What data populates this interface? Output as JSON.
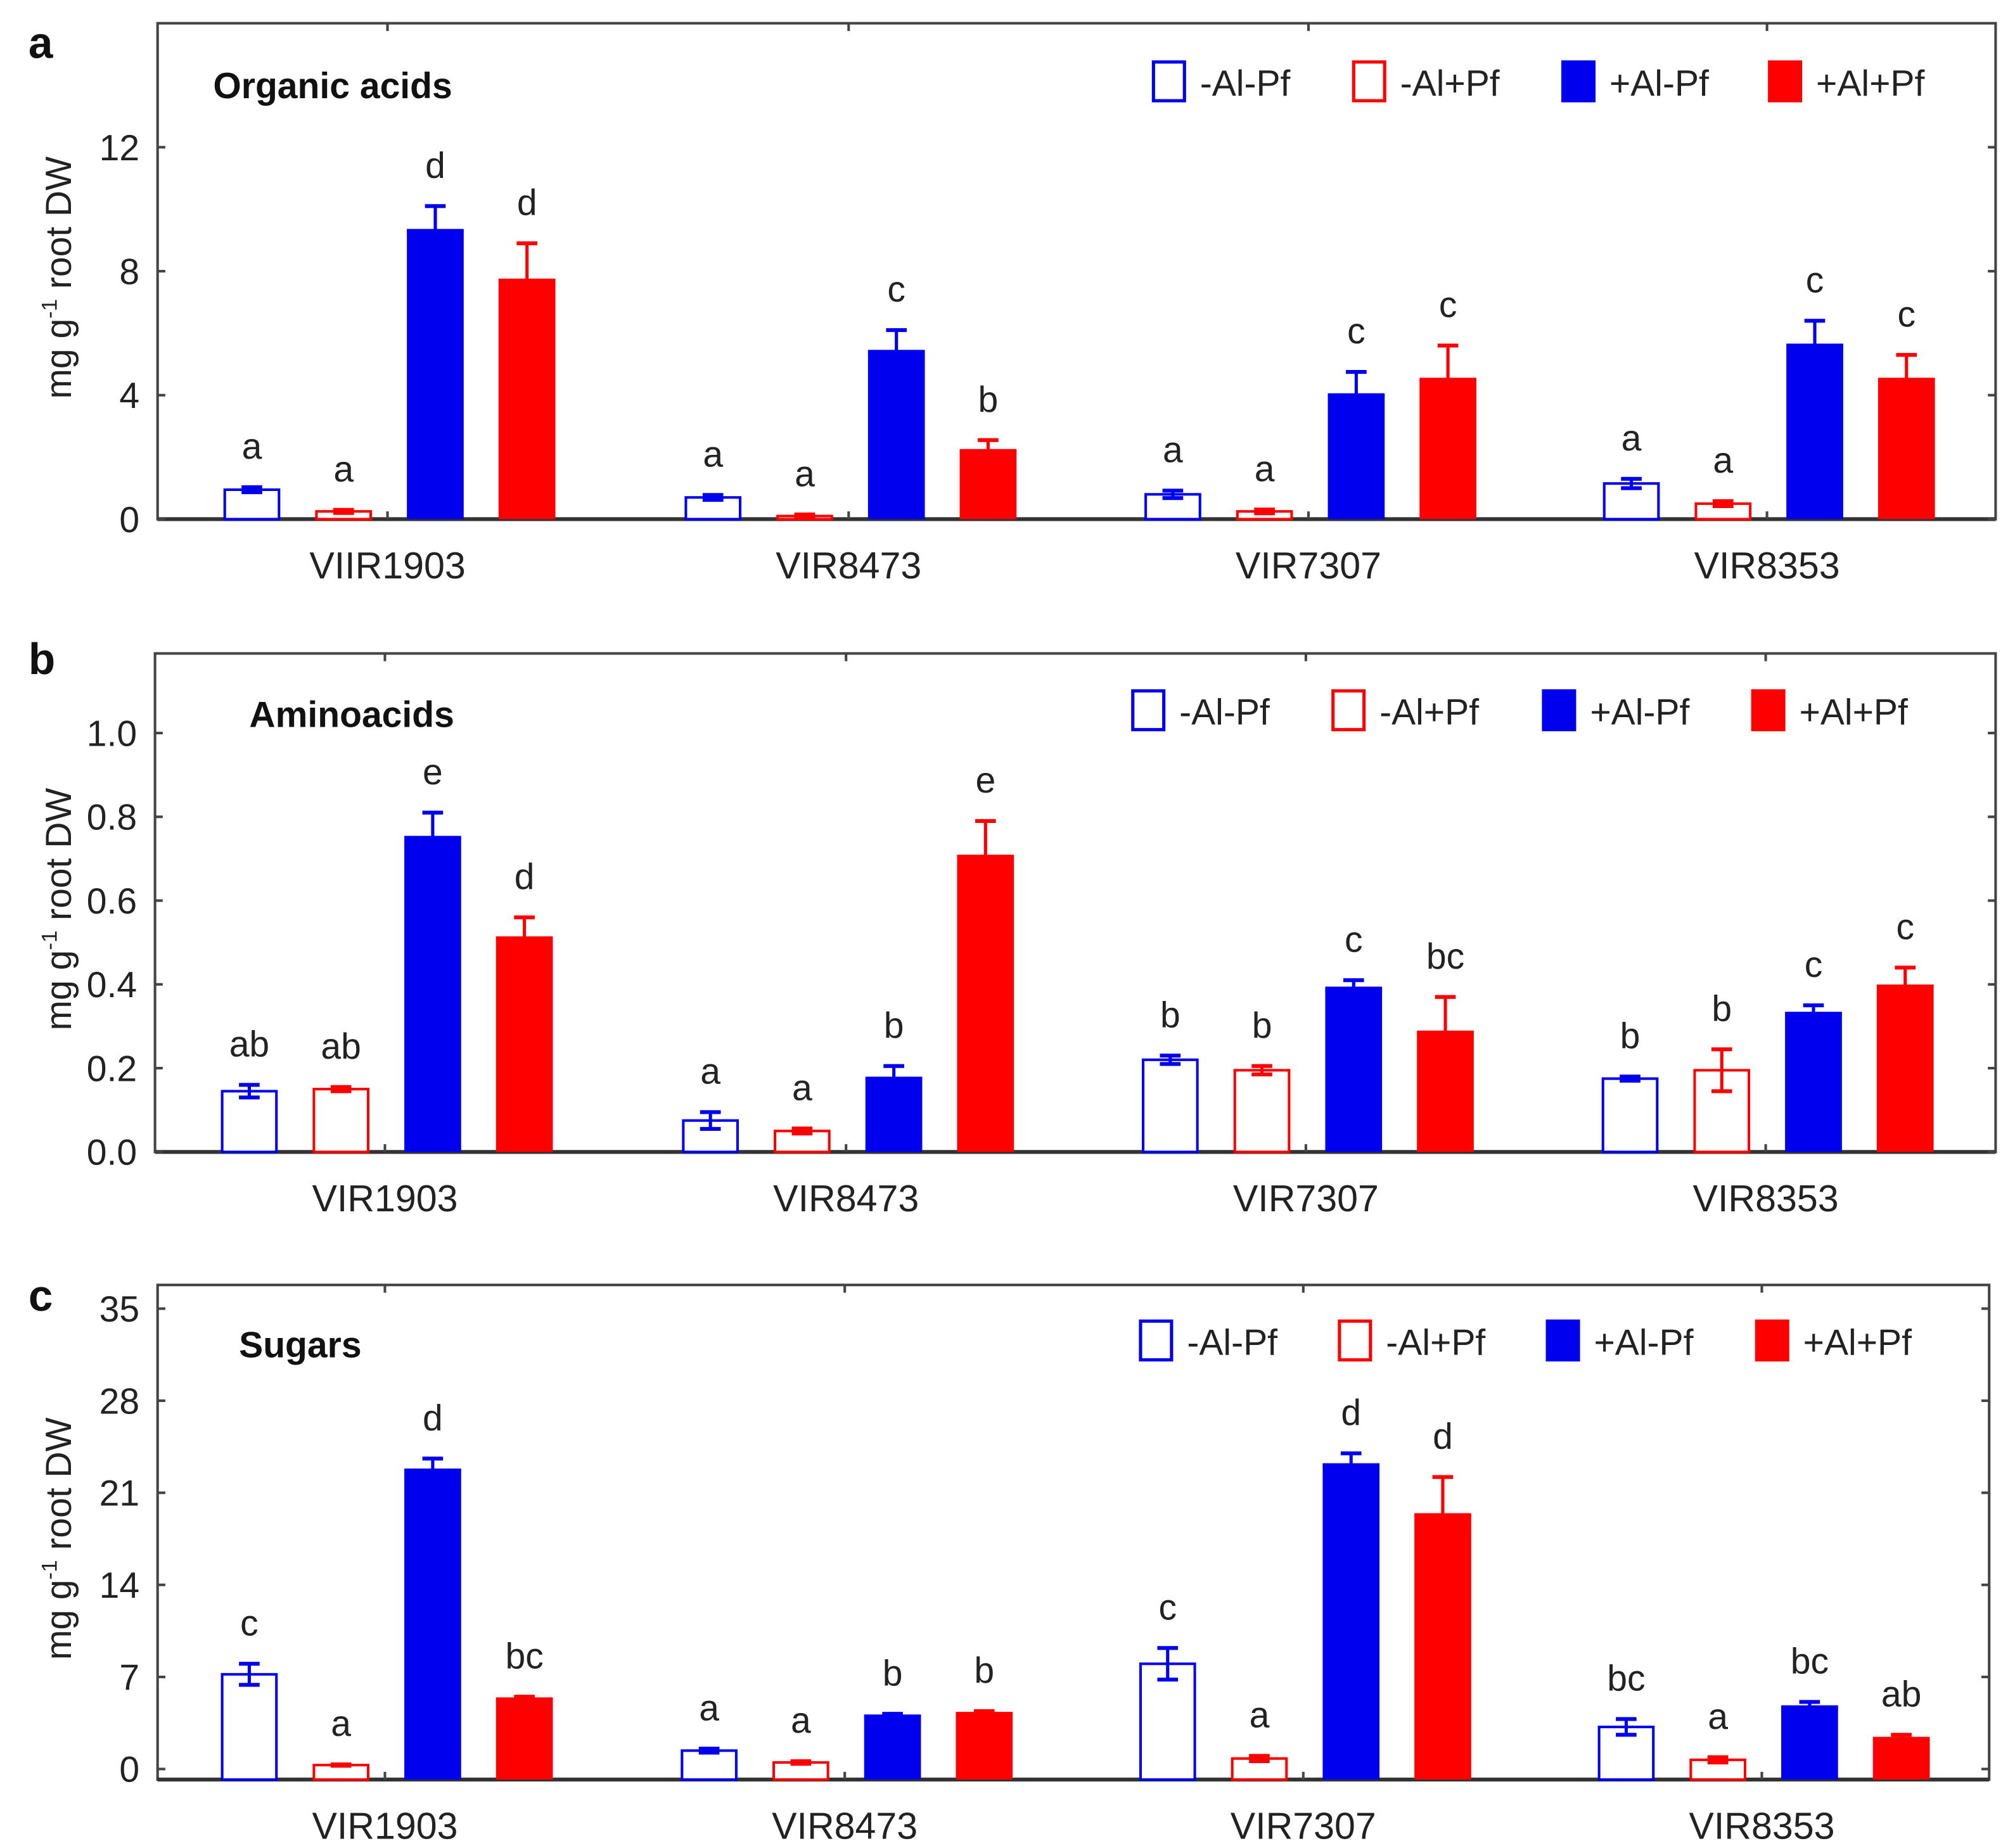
{
  "colors": {
    "blue": "#0000ee",
    "red": "#ff0000",
    "axis": "#444444"
  },
  "chart_data": [
    {
      "type": "bar",
      "panel_label": "a",
      "title": "Organic acids",
      "ylabel": "mg g-1 root DW",
      "ylabel_parts": {
        "main": "mg g",
        "sup": "-1",
        "rest": " root DW"
      },
      "ylim": [
        0,
        16
      ],
      "yticks": [
        0,
        4,
        8,
        12
      ],
      "ytick_labels": [
        "0",
        "4",
        "8",
        "12"
      ],
      "categories": [
        "VIIR1903",
        "VIR8473",
        "VIR7307",
        "VIR8353"
      ],
      "legend": [
        "-Al-Pf",
        "-Al+Pf",
        "+Al-Pf",
        "+Al+Pf"
      ],
      "legend_position": "top-right",
      "series": [
        {
          "name": "-Al-Pf",
          "fill": false,
          "color": "blue",
          "values": [
            0.95,
            0.7,
            0.8,
            1.15
          ],
          "errors": [
            0.08,
            0.08,
            0.12,
            0.15
          ],
          "letters": [
            "a",
            "a",
            "a",
            "a"
          ]
        },
        {
          "name": "-Al+Pf",
          "fill": false,
          "color": "red",
          "values": [
            0.25,
            0.1,
            0.25,
            0.5
          ],
          "errors": [
            0.05,
            0.05,
            0.06,
            0.08
          ],
          "letters": [
            "a",
            "a",
            "a",
            "a"
          ]
        },
        {
          "name": "+Al-Pf",
          "fill": true,
          "color": "blue",
          "values": [
            9.3,
            5.4,
            4.0,
            5.6
          ],
          "errors": [
            0.8,
            0.7,
            0.75,
            0.8
          ],
          "letters": [
            "d",
            "c",
            "c",
            "c"
          ]
        },
        {
          "name": "+Al+Pf",
          "fill": true,
          "color": "red",
          "values": [
            7.7,
            2.2,
            4.5,
            4.5
          ],
          "errors": [
            1.2,
            0.35,
            1.1,
            0.8
          ],
          "letters": [
            "d",
            "b",
            "c",
            "c"
          ]
        }
      ]
    },
    {
      "type": "bar",
      "panel_label": "b",
      "title": "Aminoacids",
      "ylabel": "mg g-1 root DW",
      "ylabel_parts": {
        "main": "mg g",
        "sup": "-1",
        "rest": " root DW"
      },
      "ylim": [
        0,
        1.19
      ],
      "yticks": [
        0,
        0.2,
        0.4,
        0.6,
        0.8,
        1.0
      ],
      "ytick_labels": [
        "0.0",
        "0.2",
        "0.4",
        "0.6",
        "0.8",
        "1.0"
      ],
      "categories": [
        "VIR1903",
        "VIR8473",
        "VIR7307",
        "VIR8353"
      ],
      "legend": [
        "-Al-Pf",
        "-Al+Pf",
        "+Al-Pf",
        "+Al+Pf"
      ],
      "legend_position": "top-right",
      "series": [
        {
          "name": "-Al-Pf",
          "fill": false,
          "color": "blue",
          "values": [
            0.145,
            0.075,
            0.22,
            0.175
          ],
          "errors": [
            0.015,
            0.02,
            0.01,
            0.005
          ],
          "letters": [
            "ab",
            "a",
            "b",
            "b"
          ]
        },
        {
          "name": "-Al+Pf",
          "fill": false,
          "color": "red",
          "values": [
            0.15,
            0.05,
            0.195,
            0.195
          ],
          "errors": [
            0.005,
            0.006,
            0.01,
            0.05
          ],
          "letters": [
            "ab",
            "a",
            "b",
            "b"
          ]
        },
        {
          "name": "+Al-Pf",
          "fill": true,
          "color": "blue",
          "values": [
            0.75,
            0.175,
            0.39,
            0.33
          ],
          "errors": [
            0.06,
            0.03,
            0.02,
            0.02
          ],
          "letters": [
            "e",
            "b",
            "c",
            "c"
          ]
        },
        {
          "name": "+Al+Pf",
          "fill": true,
          "color": "red",
          "values": [
            0.51,
            0.705,
            0.285,
            0.395
          ],
          "errors": [
            0.05,
            0.085,
            0.085,
            0.045
          ],
          "letters": [
            "d",
            "e",
            "bc",
            "c"
          ]
        }
      ]
    },
    {
      "type": "bar",
      "panel_label": "c",
      "title": "Sugars",
      "ylabel": "mg g-1 root DW",
      "ylabel_parts": {
        "main": "mg g",
        "sup": "-1",
        "rest": " root DW"
      },
      "ylim": [
        -0.8,
        36.8
      ],
      "yticks": [
        0,
        7,
        14,
        21,
        28,
        35
      ],
      "ytick_labels": [
        "0",
        "7",
        "14",
        "21",
        "28",
        "35"
      ],
      "categories": [
        "VIR1903",
        "VIR8473",
        "VIR7307",
        "VIR8353"
      ],
      "legend": [
        "-Al-Pf",
        "-Al+Pf",
        "+Al-Pf",
        "+Al+Pf"
      ],
      "legend_position": "top-right",
      "series": [
        {
          "name": "-Al-Pf",
          "fill": false,
          "color": "blue",
          "values": [
            7.2,
            1.4,
            8.0,
            3.2
          ],
          "errors": [
            0.8,
            0.15,
            1.2,
            0.6
          ],
          "letters": [
            "c",
            "a",
            "c",
            "bc"
          ]
        },
        {
          "name": "-Al+Pf",
          "fill": false,
          "color": "red",
          "values": [
            0.3,
            0.5,
            0.8,
            0.7
          ],
          "errors": [
            0.05,
            0.1,
            0.2,
            0.2
          ],
          "letters": [
            "a",
            "a",
            "a",
            "a"
          ]
        },
        {
          "name": "+Al-Pf",
          "fill": true,
          "color": "blue",
          "values": [
            22.7,
            4.0,
            23.1,
            4.7
          ],
          "errors": [
            0.9,
            0.2,
            0.9,
            0.4
          ],
          "letters": [
            "d",
            "b",
            "d",
            "bc"
          ]
        },
        {
          "name": "+Al+Pf",
          "fill": true,
          "color": "red",
          "values": [
            5.3,
            4.2,
            19.3,
            2.3
          ],
          "errors": [
            0.2,
            0.2,
            2.9,
            0.3
          ],
          "letters": [
            "bc",
            "b",
            "d",
            "ab"
          ]
        }
      ]
    }
  ]
}
